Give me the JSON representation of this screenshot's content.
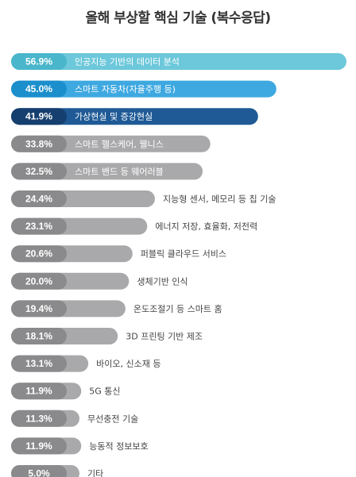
{
  "chart_data": {
    "type": "bar",
    "title": "올해 부상할 핵심 기술 (복수응답)",
    "unit": "%",
    "categories": [
      "인공지능 기반의 데이터 분석",
      "스마트 자동차(자율주행 등)",
      "가상현실 및 증강현실",
      "스마트 헬스케어, 웰니스",
      "스마트 밴드 등 웨어러블",
      "지능형 센서, 메모리 등 칩 기술",
      "에너지 저장, 효율화, 저전력",
      "퍼블릭 클라우드 서비스",
      "생체기반 인식",
      "온도조절기 등 스마트 홈",
      "3D 프린팅 기반 제조",
      "바이오, 신소재 등",
      "5G 통신",
      "무선충전 기술",
      "능동적 정보보호",
      "기타"
    ],
    "values": [
      56.9,
      45.0,
      41.9,
      33.8,
      32.5,
      24.4,
      23.1,
      20.6,
      20.0,
      19.4,
      18.1,
      13.1,
      11.9,
      11.3,
      11.9,
      5.0
    ],
    "value_labels": [
      "56.9%",
      "45.0%",
      "41.9%",
      "33.8%",
      "32.5%",
      "24.4%",
      "23.1%",
      "20.6%",
      "20.0%",
      "19.4%",
      "18.1%",
      "13.1%",
      "11.9%",
      "11.3%",
      "11.9%",
      "5.0%"
    ],
    "colors": {
      "top1_fill": "#6cc8da",
      "top1_pill": "#49b6cb",
      "top2_fill": "#3ea8e0",
      "top2_pill": "#1b8fcc",
      "top3_fill": "#1f5a96",
      "top3_pill": "#153f6e",
      "rest_fill": "#a9a9ab",
      "rest_pill": "#8a8a8c"
    },
    "xlim": [
      0,
      56.9
    ],
    "grid": false,
    "legend": "none"
  }
}
